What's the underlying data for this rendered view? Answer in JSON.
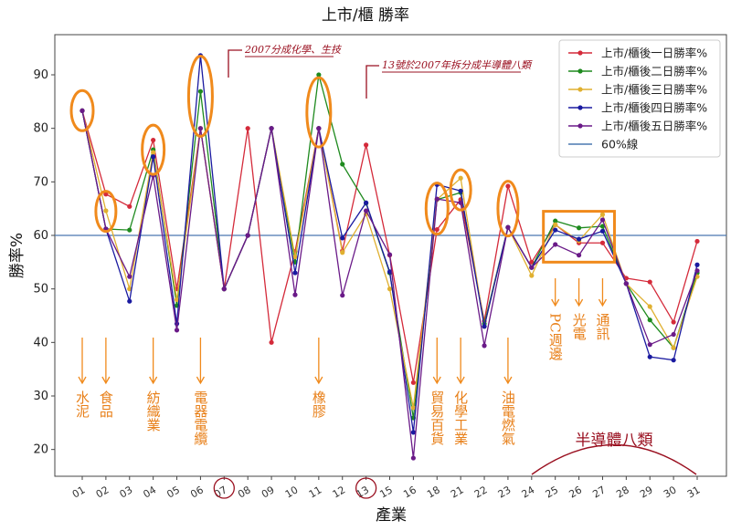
{
  "chart_data": {
    "type": "line",
    "title": "上市/櫃 勝率",
    "xlabel": "產業",
    "ylabel": "勝率%",
    "categories": [
      "01",
      "02",
      "03",
      "04",
      "05",
      "06",
      "07",
      "08",
      "09",
      "10",
      "11",
      "12",
      "13",
      "15",
      "16",
      "18",
      "21",
      "22",
      "23",
      "24",
      "25",
      "26",
      "27",
      "28",
      "29",
      "30",
      "31"
    ],
    "ylim": [
      15,
      97.5
    ],
    "yticks": [
      20,
      30,
      40,
      50,
      60,
      70,
      80,
      90
    ],
    "grid": false,
    "legend_position": "top-right",
    "reference_line": {
      "name": "60%線",
      "value": 60,
      "color": "#4a78b0"
    },
    "series": [
      {
        "name": "上市/櫃後一日勝率%",
        "color": "#d42a3a",
        "values": [
          83.3,
          67.7,
          65.4,
          77.8,
          50.0,
          80.0,
          50.0,
          80.0,
          40.0,
          57.0,
          80.0,
          57.1,
          76.9,
          56.3,
          32.5,
          61.1,
          66.7,
          44.0,
          69.2,
          55.0,
          62.0,
          58.6,
          58.6,
          52.0,
          51.3,
          43.8,
          58.9
        ]
      },
      {
        "name": "上市/櫃後二日勝率%",
        "color": "#1e8a1e",
        "values": [
          83.3,
          61.2,
          61.0,
          76.0,
          46.9,
          86.9,
          50.0,
          60.0,
          80.0,
          55.0,
          90.0,
          73.3,
          66.0,
          53.0,
          25.9,
          66.7,
          68.0,
          43.5,
          61.5,
          54.0,
          62.7,
          61.4,
          61.7,
          51.0,
          44.2,
          39.0,
          53.0
        ]
      },
      {
        "name": "上市/櫃後三日勝率%",
        "color": "#e0b030",
        "values": [
          83.3,
          64.6,
          50.0,
          75.5,
          48.0,
          80.0,
          50.0,
          60.0,
          80.0,
          56.0,
          80.0,
          56.8,
          64.0,
          50.0,
          27.8,
          66.7,
          70.7,
          43.0,
          61.5,
          52.5,
          62.0,
          59.0,
          63.9,
          51.0,
          46.7,
          39.0,
          52.3
        ]
      },
      {
        "name": "上市/櫃後四日勝率%",
        "color": "#1a1aa0",
        "values": [
          83.3,
          61.2,
          47.7,
          74.7,
          43.5,
          93.6,
          50.0,
          60.0,
          80.0,
          53.0,
          80.0,
          59.5,
          66.1,
          53.2,
          23.2,
          69.5,
          68.3,
          43.0,
          61.5,
          54.0,
          61.0,
          59.3,
          60.8,
          51.0,
          37.3,
          36.7,
          54.5
        ]
      },
      {
        "name": "上市/櫃後五日勝率%",
        "color": "#6a1a88",
        "values": [
          83.3,
          61.2,
          52.3,
          71.2,
          42.3,
          80.0,
          50.0,
          60.0,
          80.0,
          48.9,
          80.0,
          48.8,
          64.6,
          56.4,
          18.4,
          66.8,
          66.1,
          39.4,
          61.5,
          54.0,
          58.3,
          56.3,
          62.9,
          51.0,
          39.6,
          41.5,
          53.4
        ]
      }
    ],
    "annotations": {
      "note_07": "2007分成化學、生技",
      "note_13": "13號於2007年拆分成半導體八類",
      "industry_labels": [
        {
          "category": "01",
          "text": "水泥"
        },
        {
          "category": "02",
          "text": "食品"
        },
        {
          "category": "04",
          "text": "紡織業"
        },
        {
          "category": "06",
          "text": "電器電纜"
        },
        {
          "category": "11",
          "text": "橡膠"
        },
        {
          "category": "18",
          "text": "貿易百貨"
        },
        {
          "category": "21",
          "text": "化學工業"
        },
        {
          "category": "23",
          "text": "油電燃氣"
        },
        {
          "category": "25",
          "text": "PC週邊"
        },
        {
          "category": "26",
          "text": "光電"
        },
        {
          "category": "27",
          "text": "通訊"
        }
      ],
      "semiconductor_group": "半導體八類",
      "highlight_color": "#f08a1c",
      "note_color": "#9a1020"
    }
  }
}
